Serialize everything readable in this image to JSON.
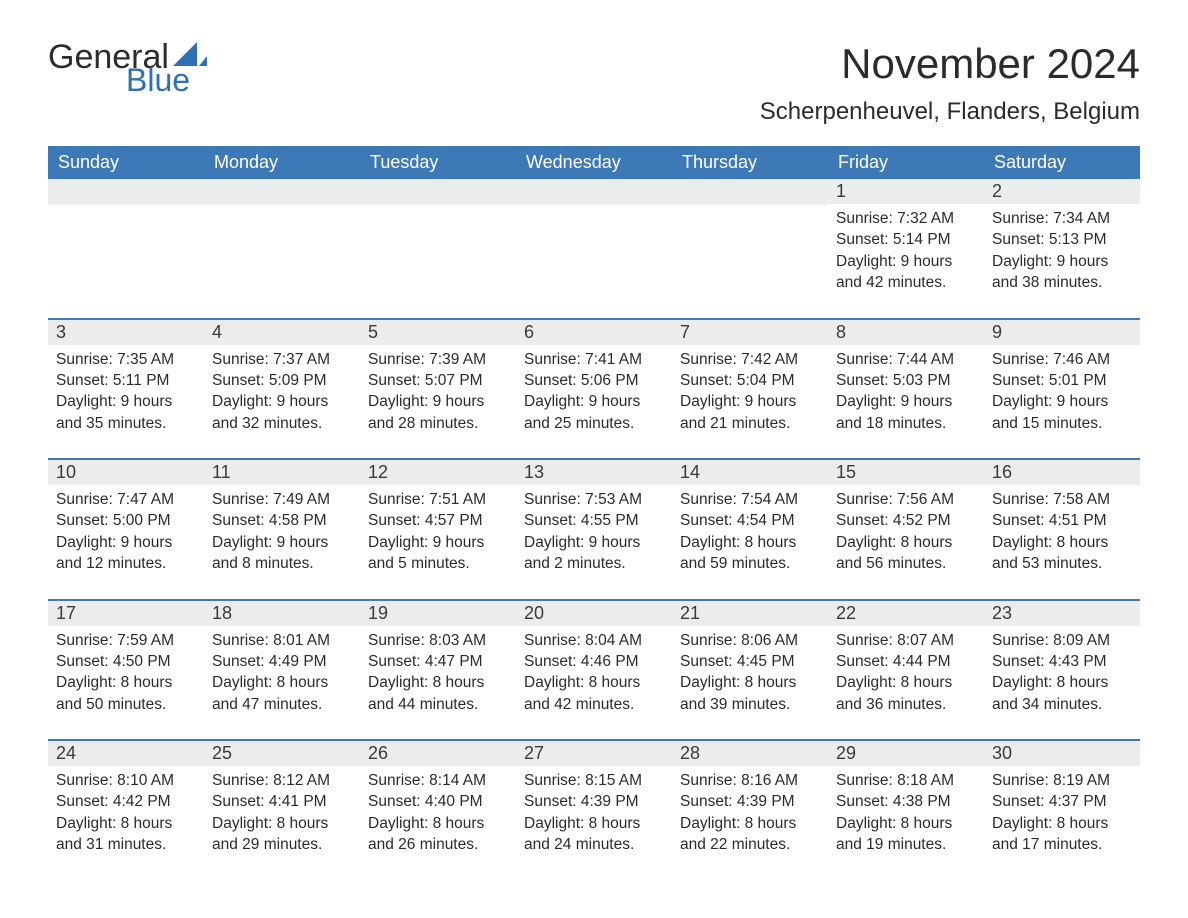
{
  "brand": {
    "text_general": "General",
    "text_blue": "Blue",
    "shape_color": "#2f6fb3",
    "text_color_dark": "#2c2c2c"
  },
  "header": {
    "month_title": "November 2024",
    "location": "Scherpenheuvel, Flanders, Belgium"
  },
  "colors": {
    "header_bar": "#3d79b6",
    "week_divider": "#3d79b6",
    "daynum_bg": "#ececec",
    "text": "#2b2b2b",
    "background": "#ffffff"
  },
  "typography": {
    "month_title_fontsize": 42,
    "location_fontsize": 24,
    "weekday_fontsize": 18,
    "daynum_fontsize": 18,
    "detail_fontsize": 15.5,
    "font_family": "Arial"
  },
  "layout": {
    "columns": 7,
    "rows": 5,
    "cell_min_height": 118
  },
  "weekdays": [
    "Sunday",
    "Monday",
    "Tuesday",
    "Wednesday",
    "Thursday",
    "Friday",
    "Saturday"
  ],
  "weeks": [
    [
      {
        "day": "",
        "sunrise": "",
        "sunset": "",
        "daylight": ""
      },
      {
        "day": "",
        "sunrise": "",
        "sunset": "",
        "daylight": ""
      },
      {
        "day": "",
        "sunrise": "",
        "sunset": "",
        "daylight": ""
      },
      {
        "day": "",
        "sunrise": "",
        "sunset": "",
        "daylight": ""
      },
      {
        "day": "",
        "sunrise": "",
        "sunset": "",
        "daylight": ""
      },
      {
        "day": "1",
        "sunrise": "Sunrise: 7:32 AM",
        "sunset": "Sunset: 5:14 PM",
        "daylight": "Daylight: 9 hours and 42 minutes."
      },
      {
        "day": "2",
        "sunrise": "Sunrise: 7:34 AM",
        "sunset": "Sunset: 5:13 PM",
        "daylight": "Daylight: 9 hours and 38 minutes."
      }
    ],
    [
      {
        "day": "3",
        "sunrise": "Sunrise: 7:35 AM",
        "sunset": "Sunset: 5:11 PM",
        "daylight": "Daylight: 9 hours and 35 minutes."
      },
      {
        "day": "4",
        "sunrise": "Sunrise: 7:37 AM",
        "sunset": "Sunset: 5:09 PM",
        "daylight": "Daylight: 9 hours and 32 minutes."
      },
      {
        "day": "5",
        "sunrise": "Sunrise: 7:39 AM",
        "sunset": "Sunset: 5:07 PM",
        "daylight": "Daylight: 9 hours and 28 minutes."
      },
      {
        "day": "6",
        "sunrise": "Sunrise: 7:41 AM",
        "sunset": "Sunset: 5:06 PM",
        "daylight": "Daylight: 9 hours and 25 minutes."
      },
      {
        "day": "7",
        "sunrise": "Sunrise: 7:42 AM",
        "sunset": "Sunset: 5:04 PM",
        "daylight": "Daylight: 9 hours and 21 minutes."
      },
      {
        "day": "8",
        "sunrise": "Sunrise: 7:44 AM",
        "sunset": "Sunset: 5:03 PM",
        "daylight": "Daylight: 9 hours and 18 minutes."
      },
      {
        "day": "9",
        "sunrise": "Sunrise: 7:46 AM",
        "sunset": "Sunset: 5:01 PM",
        "daylight": "Daylight: 9 hours and 15 minutes."
      }
    ],
    [
      {
        "day": "10",
        "sunrise": "Sunrise: 7:47 AM",
        "sunset": "Sunset: 5:00 PM",
        "daylight": "Daylight: 9 hours and 12 minutes."
      },
      {
        "day": "11",
        "sunrise": "Sunrise: 7:49 AM",
        "sunset": "Sunset: 4:58 PM",
        "daylight": "Daylight: 9 hours and 8 minutes."
      },
      {
        "day": "12",
        "sunrise": "Sunrise: 7:51 AM",
        "sunset": "Sunset: 4:57 PM",
        "daylight": "Daylight: 9 hours and 5 minutes."
      },
      {
        "day": "13",
        "sunrise": "Sunrise: 7:53 AM",
        "sunset": "Sunset: 4:55 PM",
        "daylight": "Daylight: 9 hours and 2 minutes."
      },
      {
        "day": "14",
        "sunrise": "Sunrise: 7:54 AM",
        "sunset": "Sunset: 4:54 PM",
        "daylight": "Daylight: 8 hours and 59 minutes."
      },
      {
        "day": "15",
        "sunrise": "Sunrise: 7:56 AM",
        "sunset": "Sunset: 4:52 PM",
        "daylight": "Daylight: 8 hours and 56 minutes."
      },
      {
        "day": "16",
        "sunrise": "Sunrise: 7:58 AM",
        "sunset": "Sunset: 4:51 PM",
        "daylight": "Daylight: 8 hours and 53 minutes."
      }
    ],
    [
      {
        "day": "17",
        "sunrise": "Sunrise: 7:59 AM",
        "sunset": "Sunset: 4:50 PM",
        "daylight": "Daylight: 8 hours and 50 minutes."
      },
      {
        "day": "18",
        "sunrise": "Sunrise: 8:01 AM",
        "sunset": "Sunset: 4:49 PM",
        "daylight": "Daylight: 8 hours and 47 minutes."
      },
      {
        "day": "19",
        "sunrise": "Sunrise: 8:03 AM",
        "sunset": "Sunset: 4:47 PM",
        "daylight": "Daylight: 8 hours and 44 minutes."
      },
      {
        "day": "20",
        "sunrise": "Sunrise: 8:04 AM",
        "sunset": "Sunset: 4:46 PM",
        "daylight": "Daylight: 8 hours and 42 minutes."
      },
      {
        "day": "21",
        "sunrise": "Sunrise: 8:06 AM",
        "sunset": "Sunset: 4:45 PM",
        "daylight": "Daylight: 8 hours and 39 minutes."
      },
      {
        "day": "22",
        "sunrise": "Sunrise: 8:07 AM",
        "sunset": "Sunset: 4:44 PM",
        "daylight": "Daylight: 8 hours and 36 minutes."
      },
      {
        "day": "23",
        "sunrise": "Sunrise: 8:09 AM",
        "sunset": "Sunset: 4:43 PM",
        "daylight": "Daylight: 8 hours and 34 minutes."
      }
    ],
    [
      {
        "day": "24",
        "sunrise": "Sunrise: 8:10 AM",
        "sunset": "Sunset: 4:42 PM",
        "daylight": "Daylight: 8 hours and 31 minutes."
      },
      {
        "day": "25",
        "sunrise": "Sunrise: 8:12 AM",
        "sunset": "Sunset: 4:41 PM",
        "daylight": "Daylight: 8 hours and 29 minutes."
      },
      {
        "day": "26",
        "sunrise": "Sunrise: 8:14 AM",
        "sunset": "Sunset: 4:40 PM",
        "daylight": "Daylight: 8 hours and 26 minutes."
      },
      {
        "day": "27",
        "sunrise": "Sunrise: 8:15 AM",
        "sunset": "Sunset: 4:39 PM",
        "daylight": "Daylight: 8 hours and 24 minutes."
      },
      {
        "day": "28",
        "sunrise": "Sunrise: 8:16 AM",
        "sunset": "Sunset: 4:39 PM",
        "daylight": "Daylight: 8 hours and 22 minutes."
      },
      {
        "day": "29",
        "sunrise": "Sunrise: 8:18 AM",
        "sunset": "Sunset: 4:38 PM",
        "daylight": "Daylight: 8 hours and 19 minutes."
      },
      {
        "day": "30",
        "sunrise": "Sunrise: 8:19 AM",
        "sunset": "Sunset: 4:37 PM",
        "daylight": "Daylight: 8 hours and 17 minutes."
      }
    ]
  ]
}
